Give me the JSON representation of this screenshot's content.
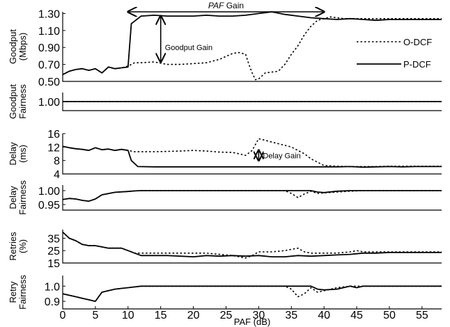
{
  "figure": {
    "xlabel": "PAF (dB)",
    "xlim": [
      0,
      58
    ],
    "xticks": [
      0,
      5,
      10,
      15,
      20,
      25,
      30,
      35,
      40,
      45,
      50,
      55
    ]
  },
  "annotations": {
    "paf_gain": {
      "label_italic": "PAF",
      "label_rest": " Gain",
      "x_from": 10,
      "x_to": 40
    },
    "goodput_gain": {
      "label": "Goodput Gain",
      "x": 15,
      "y_from": 0.73,
      "y_to": 1.27
    },
    "delay_gain": {
      "label": "Delay Gain",
      "x": 30,
      "y_from": 8.0,
      "y_to": 11.0
    }
  },
  "chart_data": [
    {
      "type": "line",
      "panel": "goodput",
      "ylabel": [
        "Goodput",
        "(Mbps)"
      ],
      "ylim": [
        0.5,
        1.32
      ],
      "yticks": [
        "1.30",
        "1.10",
        "0.90",
        "0.70",
        "0.50"
      ],
      "ytick_values": [
        1.3,
        1.1,
        0.9,
        0.7,
        0.5
      ],
      "legend": [
        {
          "name": "O-DCF",
          "style": "dotted"
        },
        {
          "name": "P-DCF",
          "style": "solid"
        }
      ],
      "series": [
        {
          "name": "O-DCF",
          "style": "dotted",
          "x": [
            0,
            1,
            2,
            3,
            4,
            5,
            6,
            7,
            8,
            9,
            10,
            11,
            12,
            14,
            16,
            18,
            20,
            22,
            24,
            26,
            27,
            28,
            28.5,
            29,
            29.5,
            30,
            31,
            33,
            34,
            35,
            36,
            37,
            38,
            39,
            40,
            41,
            42,
            43,
            44,
            46,
            48,
            50,
            52,
            54,
            56,
            58
          ],
          "y": [
            0.58,
            0.62,
            0.64,
            0.65,
            0.63,
            0.65,
            0.6,
            0.67,
            0.65,
            0.66,
            0.68,
            0.72,
            0.72,
            0.73,
            0.7,
            0.7,
            0.71,
            0.72,
            0.76,
            0.83,
            0.84,
            0.82,
            0.7,
            0.6,
            0.52,
            0.53,
            0.6,
            0.62,
            0.7,
            0.82,
            0.92,
            1.05,
            1.15,
            1.22,
            1.24,
            1.26,
            1.25,
            1.24,
            1.24,
            1.24,
            1.24,
            1.24,
            1.24,
            1.24,
            1.24,
            1.24
          ]
        },
        {
          "name": "P-DCF",
          "style": "solid",
          "x": [
            0,
            1,
            2,
            3,
            4,
            5,
            6,
            7,
            8,
            9,
            10,
            10.5,
            12,
            14,
            16,
            18,
            20,
            22,
            24,
            26,
            28,
            30,
            32,
            34,
            36,
            38,
            40,
            42,
            44,
            46,
            48,
            50,
            52,
            54,
            56,
            58
          ],
          "y": [
            0.58,
            0.62,
            0.64,
            0.65,
            0.63,
            0.65,
            0.6,
            0.67,
            0.65,
            0.66,
            0.67,
            1.18,
            1.27,
            1.28,
            1.27,
            1.27,
            1.27,
            1.28,
            1.27,
            1.27,
            1.28,
            1.3,
            1.32,
            1.29,
            1.27,
            1.25,
            1.24,
            1.23,
            1.24,
            1.23,
            1.22,
            1.23,
            1.23,
            1.23,
            1.23,
            1.23
          ]
        }
      ]
    },
    {
      "type": "line",
      "panel": "goodput-fairness",
      "ylabel": [
        "Goodput",
        "Fairness"
      ],
      "ylim": [
        0.9,
        1.1
      ],
      "yticks": [
        "1.00"
      ],
      "ytick_values": [
        1.0
      ],
      "series": [
        {
          "name": "O-DCF",
          "style": "dotted",
          "x": [
            0,
            58
          ],
          "y": [
            1.0,
            1.0
          ]
        },
        {
          "name": "P-DCF",
          "style": "solid",
          "x": [
            0,
            58
          ],
          "y": [
            1.0,
            1.0
          ]
        }
      ]
    },
    {
      "type": "line",
      "panel": "delay",
      "ylabel": [
        "Delay",
        "(ms)"
      ],
      "ylim": [
        4,
        16
      ],
      "yticks": [
        "16",
        "12",
        "8",
        "4"
      ],
      "ytick_values": [
        16,
        12,
        8,
        4
      ],
      "series": [
        {
          "name": "O-DCF",
          "style": "dotted",
          "x": [
            0,
            1,
            2,
            3,
            4,
            5,
            6,
            7,
            8,
            9,
            10,
            11,
            12,
            14,
            16,
            18,
            20,
            22,
            24,
            26,
            27,
            28,
            29,
            30,
            31,
            33,
            35,
            36,
            37,
            38,
            39,
            40,
            42,
            44,
            46,
            48,
            50,
            52,
            54,
            56,
            58
          ],
          "y": [
            12.2,
            11.8,
            11.5,
            11.3,
            11.0,
            11.8,
            11.2,
            11.4,
            11.0,
            11.3,
            11.0,
            10.6,
            10.6,
            10.6,
            10.7,
            10.8,
            11.0,
            10.8,
            10.5,
            10.4,
            10.0,
            9.5,
            11.0,
            14.5,
            14.0,
            13.0,
            12.0,
            11.0,
            10.0,
            8.5,
            7.5,
            6.5,
            6.3,
            6.2,
            6.2,
            6.2,
            6.3,
            6.3,
            6.3,
            6.3,
            6.3
          ]
        },
        {
          "name": "P-DCF",
          "style": "solid",
          "x": [
            0,
            1,
            2,
            3,
            4,
            5,
            6,
            7,
            8,
            9,
            10,
            10.5,
            11.5,
            14,
            20,
            26,
            32,
            38,
            42,
            44,
            46,
            48,
            50,
            52,
            54,
            56,
            58
          ],
          "y": [
            12.2,
            11.8,
            11.5,
            11.3,
            11.0,
            11.8,
            11.2,
            11.4,
            11.0,
            11.3,
            11.0,
            8.0,
            6.2,
            6.1,
            6.1,
            6.1,
            6.1,
            6.1,
            6.1,
            6.2,
            6.0,
            6.1,
            6.2,
            6.1,
            6.2,
            6.2,
            6.2
          ]
        }
      ]
    },
    {
      "type": "line",
      "panel": "delay-fairness",
      "ylabel": [
        "Delay",
        "Fairness"
      ],
      "ylim": [
        0.93,
        1.02
      ],
      "yticks": [
        "1.00",
        "0.95"
      ],
      "ytick_values": [
        1.0,
        0.95
      ],
      "series": [
        {
          "name": "O-DCF",
          "style": "dotted",
          "x": [
            0,
            1,
            2,
            3,
            4,
            5,
            6,
            8,
            10,
            11,
            12,
            20,
            30,
            34,
            35,
            36,
            37,
            38,
            39,
            40,
            42,
            44,
            46,
            58
          ],
          "y": [
            0.968,
            0.972,
            0.97,
            0.965,
            0.962,
            0.97,
            0.985,
            0.994,
            0.997,
            0.999,
            1.0,
            1.0,
            1.0,
            1.0,
            0.99,
            0.975,
            0.988,
            0.998,
            0.99,
            0.992,
            0.995,
            0.998,
            1.0,
            1.0
          ]
        },
        {
          "name": "P-DCF",
          "style": "solid",
          "x": [
            0,
            1,
            2,
            3,
            4,
            5,
            6,
            8,
            10,
            11,
            12,
            20,
            30,
            38,
            39,
            40,
            42,
            44,
            46,
            58
          ],
          "y": [
            0.968,
            0.972,
            0.97,
            0.965,
            0.962,
            0.97,
            0.985,
            0.994,
            0.997,
            0.999,
            1.0,
            1.0,
            1.0,
            1.0,
            0.995,
            0.993,
            0.998,
            1.0,
            1.0,
            1.0
          ]
        }
      ]
    },
    {
      "type": "line",
      "panel": "retries",
      "ylabel": [
        "Retries",
        "(%)"
      ],
      "ylim": [
        15,
        42
      ],
      "yticks": [
        "35",
        "25",
        "15"
      ],
      "ytick_values": [
        35,
        25,
        15
      ],
      "series": [
        {
          "name": "O-DCF",
          "style": "dotted",
          "x": [
            0,
            1,
            2,
            3,
            4,
            5,
            6,
            7,
            8,
            9,
            10,
            11,
            12,
            14,
            16,
            18,
            20,
            22,
            24,
            26,
            27,
            28,
            29,
            30,
            32,
            34,
            35,
            36,
            37,
            38,
            40,
            42,
            44,
            45,
            46,
            48,
            50,
            52,
            54,
            56,
            58
          ],
          "y": [
            40,
            35,
            33,
            30,
            29,
            29,
            28,
            27,
            27,
            27,
            25,
            23,
            23,
            23,
            23,
            23,
            23,
            23,
            22,
            21,
            20,
            19,
            21,
            24,
            24,
            25,
            26,
            27,
            24,
            23,
            23,
            23,
            24,
            25,
            24,
            24,
            24,
            24,
            24,
            24,
            24
          ]
        },
        {
          "name": "P-DCF",
          "style": "solid",
          "x": [
            0,
            1,
            2,
            3,
            4,
            5,
            6,
            7,
            8,
            9,
            10,
            11,
            12,
            14,
            16,
            18,
            20,
            22,
            24,
            26,
            28,
            30,
            32,
            34,
            36,
            38,
            40,
            42,
            44,
            46,
            48,
            50,
            52,
            54,
            56,
            58
          ],
          "y": [
            40,
            35,
            33,
            30,
            29,
            29,
            28,
            27,
            27,
            27,
            25,
            23,
            21,
            21,
            21,
            20.5,
            20,
            21,
            20.5,
            21,
            20.5,
            21,
            20,
            20,
            21,
            20.5,
            21,
            21.5,
            22,
            23,
            23,
            23.5,
            23.5,
            23.5,
            23.5,
            23.5
          ]
        }
      ]
    },
    {
      "type": "line",
      "panel": "retry-fairness",
      "ylabel": [
        "Retry",
        "Fairness"
      ],
      "ylim": [
        0.85,
        1.07
      ],
      "yticks": [
        "1.0",
        "0.9"
      ],
      "ytick_values": [
        1.0,
        0.9
      ],
      "series": [
        {
          "name": "O-DCF",
          "style": "dotted",
          "x": [
            0,
            1,
            2,
            3,
            4,
            5,
            6,
            7,
            8,
            9,
            10,
            11,
            12,
            20,
            30,
            34,
            35,
            36,
            37,
            38,
            39,
            40,
            42,
            44,
            46,
            58
          ],
          "y": [
            0.95,
            0.94,
            0.93,
            0.92,
            0.91,
            0.9,
            0.96,
            0.97,
            0.98,
            0.985,
            0.99,
            0.995,
            1.0,
            1.0,
            1.0,
            1.0,
            0.98,
            0.93,
            0.95,
            0.99,
            0.96,
            0.97,
            0.99,
            1.0,
            1.0,
            1.0
          ]
        },
        {
          "name": "P-DCF",
          "style": "solid",
          "x": [
            0,
            1,
            2,
            3,
            4,
            5,
            6,
            7,
            8,
            9,
            10,
            11,
            12,
            20,
            30,
            38,
            39,
            40,
            42,
            44,
            45,
            46,
            48,
            58
          ],
          "y": [
            0.95,
            0.94,
            0.93,
            0.92,
            0.91,
            0.9,
            0.96,
            0.97,
            0.98,
            0.985,
            0.99,
            0.995,
            1.0,
            1.0,
            1.0,
            1.0,
            0.98,
            0.975,
            0.98,
            1.0,
            0.99,
            1.0,
            1.0,
            1.0
          ]
        }
      ]
    }
  ]
}
